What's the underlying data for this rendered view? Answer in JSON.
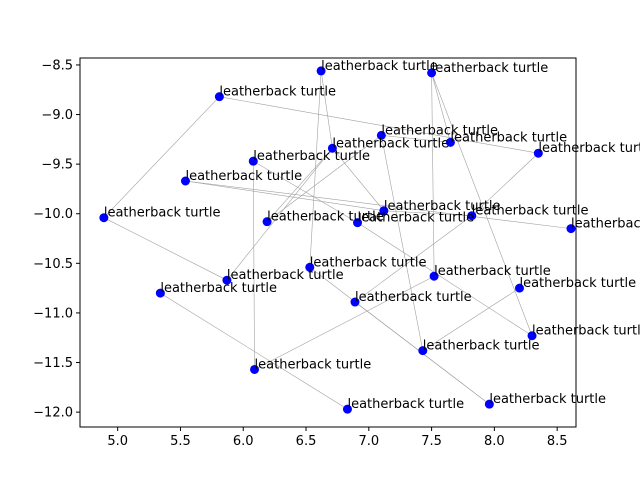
{
  "chart_data": {
    "type": "scatter",
    "title": "",
    "xlabel": "",
    "ylabel": "",
    "xlim": [
      4.7,
      8.65
    ],
    "ylim": [
      -12.15,
      -8.43
    ],
    "xticks": [
      5.0,
      5.5,
      6.0,
      6.5,
      7.0,
      7.5,
      8.0,
      8.5
    ],
    "yticks": [
      -8.5,
      -9.0,
      -9.5,
      -10.0,
      -10.5,
      -11.0,
      -11.5,
      -12.0
    ],
    "xtick_labels": [
      "5.0",
      "5.5",
      "6.0",
      "6.5",
      "7.0",
      "7.5",
      "8.0",
      "8.5"
    ],
    "ytick_labels": [
      "−8.5",
      "−9.0",
      "−9.5",
      "−10.0",
      "−10.5",
      "−11.0",
      "−11.5",
      "−12.0"
    ],
    "marker_color": "#0000ff",
    "edge_color": "#a0a0a0",
    "points": [
      {
        "x": 6.62,
        "y": -8.56,
        "label": "leatherback turtle"
      },
      {
        "x": 7.5,
        "y": -8.58,
        "label": "leatherback turtle"
      },
      {
        "x": 5.81,
        "y": -8.82,
        "label": "leatherback turtle"
      },
      {
        "x": 7.1,
        "y": -9.21,
        "label": "leatherback turtle"
      },
      {
        "x": 7.65,
        "y": -9.28,
        "label": "leatherback turtle"
      },
      {
        "x": 6.71,
        "y": -9.34,
        "label": "leatherback turtle"
      },
      {
        "x": 8.35,
        "y": -9.39,
        "label": "leatherback turtle"
      },
      {
        "x": 6.08,
        "y": -9.47,
        "label": "leatherback turtle"
      },
      {
        "x": 5.54,
        "y": -9.67,
        "label": "leatherback turtle"
      },
      {
        "x": 7.12,
        "y": -9.97,
        "label": "leatherback turtle"
      },
      {
        "x": 7.82,
        "y": -10.02,
        "label": "leatherback turtle"
      },
      {
        "x": 4.89,
        "y": -10.04,
        "label": "leatherback turtle"
      },
      {
        "x": 6.19,
        "y": -10.08,
        "label": "leatherback turtle"
      },
      {
        "x": 6.91,
        "y": -10.09,
        "label": "leatherback turtle"
      },
      {
        "x": 8.61,
        "y": -10.15,
        "label": "leatherback turtle"
      },
      {
        "x": 6.53,
        "y": -10.54,
        "label": "leatherback turtle"
      },
      {
        "x": 7.52,
        "y": -10.63,
        "label": "leatherback turtle"
      },
      {
        "x": 5.87,
        "y": -10.67,
        "label": "leatherback turtle"
      },
      {
        "x": 8.2,
        "y": -10.75,
        "label": "leatherback turtle"
      },
      {
        "x": 5.34,
        "y": -10.8,
        "label": "leatherback turtle"
      },
      {
        "x": 6.89,
        "y": -10.89,
        "label": "leatherback turtle"
      },
      {
        "x": 8.3,
        "y": -11.23,
        "label": "leatherback turtle"
      },
      {
        "x": 7.43,
        "y": -11.38,
        "label": "leatherback turtle"
      },
      {
        "x": 6.09,
        "y": -11.57,
        "label": "leatherback turtle"
      },
      {
        "x": 7.96,
        "y": -11.92,
        "label": "leatherback turtle"
      },
      {
        "x": 6.83,
        "y": -11.97,
        "label": "leatherback turtle"
      }
    ],
    "edges": [
      [
        2,
        11
      ],
      [
        11,
        17
      ],
      [
        2,
        6
      ],
      [
        0,
        5
      ],
      [
        0,
        15
      ],
      [
        15,
        24
      ],
      [
        1,
        4
      ],
      [
        1,
        16
      ],
      [
        1,
        21
      ],
      [
        3,
        4
      ],
      [
        3,
        22
      ],
      [
        5,
        9
      ],
      [
        5,
        12
      ],
      [
        7,
        13
      ],
      [
        7,
        23
      ],
      [
        8,
        14
      ],
      [
        8,
        9
      ],
      [
        9,
        10
      ],
      [
        10,
        20
      ],
      [
        10,
        6
      ],
      [
        13,
        21
      ],
      [
        16,
        23
      ],
      [
        18,
        22
      ],
      [
        19,
        25
      ],
      [
        20,
        24
      ],
      [
        12,
        3
      ],
      [
        17,
        5
      ]
    ]
  }
}
